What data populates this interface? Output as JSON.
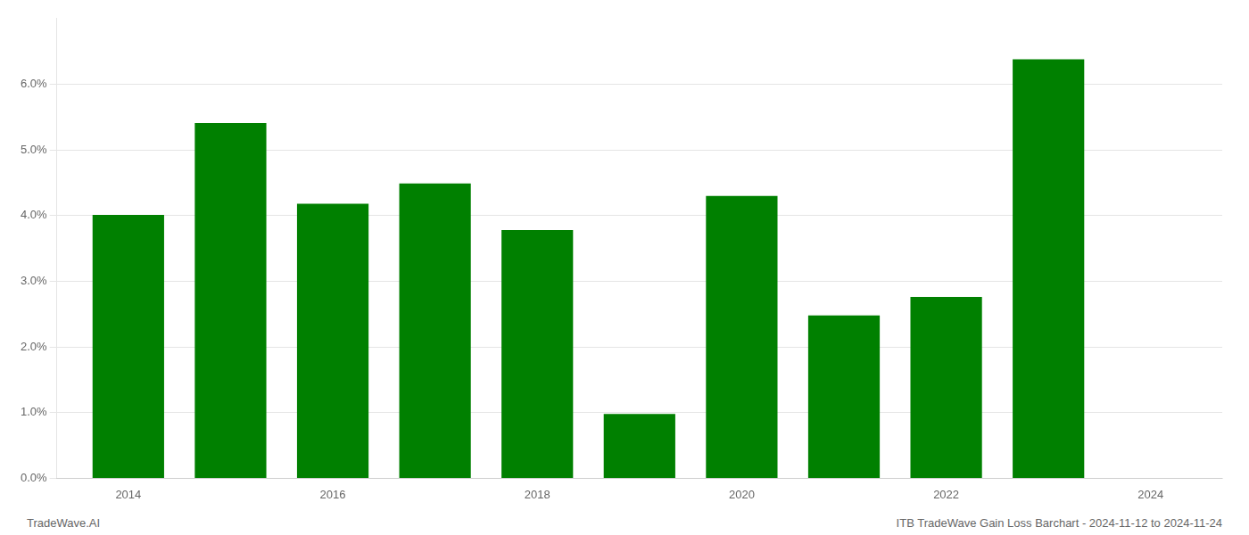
{
  "chart_data": {
    "type": "bar",
    "x": [
      2014,
      2015,
      2016,
      2017,
      2018,
      2019,
      2020,
      2021,
      2022,
      2023
    ],
    "values": [
      0.0401,
      0.0541,
      0.0418,
      0.0449,
      0.0378,
      0.0098,
      0.043,
      0.0248,
      0.0276,
      0.0638
    ],
    "color": "#008000",
    "xlim": [
      2013.3,
      2024.7
    ],
    "xticks": [
      2014,
      2016,
      2018,
      2020,
      2022,
      2024
    ],
    "ylim": [
      0,
      0.07
    ],
    "yticks": [
      {
        "value": 0.0,
        "label": "0.0%"
      },
      {
        "value": 0.01,
        "label": "1.0%"
      },
      {
        "value": 0.02,
        "label": "2.0%"
      },
      {
        "value": 0.03,
        "label": "3.0%"
      },
      {
        "value": 0.04,
        "label": "4.0%"
      },
      {
        "value": 0.05,
        "label": "5.0%"
      },
      {
        "value": 0.06,
        "label": "6.0%"
      }
    ],
    "grid": true,
    "annotations": [
      "TradeWave.AI",
      "ITB TradeWave Gain Loss Barchart - 2024-11-12 to 2024-11-24"
    ]
  }
}
